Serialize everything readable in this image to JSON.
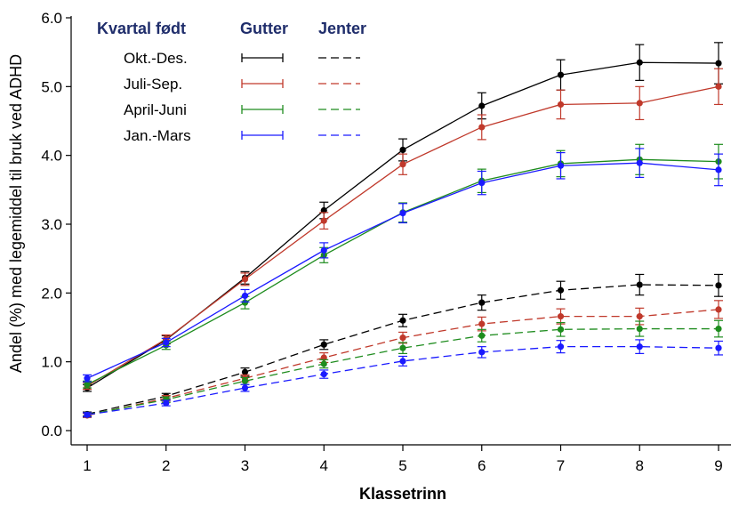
{
  "chart_data": {
    "type": "line",
    "title": "",
    "xlabel": "Klassetrinn",
    "ylabel": "Andel (%) med legemiddel til bruk ved ADHD",
    "x": [
      1,
      2,
      3,
      4,
      5,
      6,
      7,
      8,
      9
    ],
    "xlim": [
      1,
      9
    ],
    "ylim": [
      0,
      6
    ],
    "y_ticks": [
      "0.0",
      "1.0",
      "2.0",
      "3.0",
      "4.0",
      "5.0",
      "6.0"
    ],
    "x_ticks": [
      "1",
      "2",
      "3",
      "4",
      "5",
      "6",
      "7",
      "8",
      "9"
    ],
    "grid": false,
    "legend": {
      "position": "top-left",
      "header_group": "Kvartal født",
      "header_boys": "Gutter",
      "header_girls": "Jenter",
      "header_color": "#1f2d6b",
      "groups": [
        {
          "label": "Okt.-Des.",
          "color": "#000000"
        },
        {
          "label": "Juli-Sep.",
          "color": "#c0392b"
        },
        {
          "label": "April-Juni",
          "color": "#1e8c1e"
        },
        {
          "label": "Jan.-Mars",
          "color": "#1a1aff"
        }
      ]
    },
    "series": [
      {
        "name": "Okt.-Des. Gutter",
        "color": "#000000",
        "dash": "solid",
        "values": [
          0.62,
          1.32,
          2.22,
          3.2,
          4.08,
          4.72,
          5.17,
          5.35,
          5.34
        ],
        "err": [
          0.05,
          0.06,
          0.09,
          0.12,
          0.16,
          0.19,
          0.22,
          0.26,
          0.3
        ]
      },
      {
        "name": "Juli-Sep. Gutter",
        "color": "#c0392b",
        "dash": "solid",
        "values": [
          0.65,
          1.33,
          2.2,
          3.05,
          3.87,
          4.41,
          4.74,
          4.76,
          5.0
        ],
        "err": [
          0.05,
          0.06,
          0.09,
          0.12,
          0.15,
          0.18,
          0.21,
          0.24,
          0.26
        ]
      },
      {
        "name": "April-Juni Gutter",
        "color": "#1e8c1e",
        "dash": "solid",
        "values": [
          0.67,
          1.24,
          1.86,
          2.55,
          3.17,
          3.63,
          3.88,
          3.94,
          3.91
        ],
        "err": [
          0.05,
          0.06,
          0.09,
          0.11,
          0.14,
          0.17,
          0.19,
          0.22,
          0.25
        ]
      },
      {
        "name": "Jan.-Mars Gutter",
        "color": "#1a1aff",
        "dash": "solid",
        "values": [
          0.76,
          1.28,
          1.96,
          2.62,
          3.16,
          3.6,
          3.85,
          3.89,
          3.79
        ],
        "err": [
          0.05,
          0.06,
          0.09,
          0.11,
          0.14,
          0.17,
          0.19,
          0.21,
          0.23
        ]
      },
      {
        "name": "Okt.-Des. Jenter",
        "color": "#000000",
        "dash": "dashed",
        "values": [
          0.24,
          0.5,
          0.85,
          1.25,
          1.6,
          1.86,
          2.04,
          2.12,
          2.11
        ],
        "err": [
          0.03,
          0.04,
          0.06,
          0.07,
          0.09,
          0.11,
          0.13,
          0.15,
          0.16
        ]
      },
      {
        "name": "Juli-Sep. Jenter",
        "color": "#c0392b",
        "dash": "dashed",
        "values": [
          0.22,
          0.47,
          0.76,
          1.06,
          1.35,
          1.55,
          1.66,
          1.66,
          1.76
        ],
        "err": [
          0.03,
          0.04,
          0.05,
          0.07,
          0.08,
          0.1,
          0.11,
          0.12,
          0.13
        ]
      },
      {
        "name": "April-Juni Jenter",
        "color": "#1e8c1e",
        "dash": "dashed",
        "values": [
          0.23,
          0.45,
          0.72,
          0.97,
          1.2,
          1.38,
          1.47,
          1.48,
          1.48
        ],
        "err": [
          0.03,
          0.04,
          0.05,
          0.06,
          0.08,
          0.09,
          0.1,
          0.11,
          0.12
        ]
      },
      {
        "name": "Jan.-Mars Jenter",
        "color": "#1a1aff",
        "dash": "dashed",
        "values": [
          0.23,
          0.4,
          0.62,
          0.82,
          1.01,
          1.14,
          1.22,
          1.22,
          1.2
        ],
        "err": [
          0.03,
          0.04,
          0.05,
          0.06,
          0.07,
          0.08,
          0.09,
          0.1,
          0.1
        ]
      }
    ]
  }
}
